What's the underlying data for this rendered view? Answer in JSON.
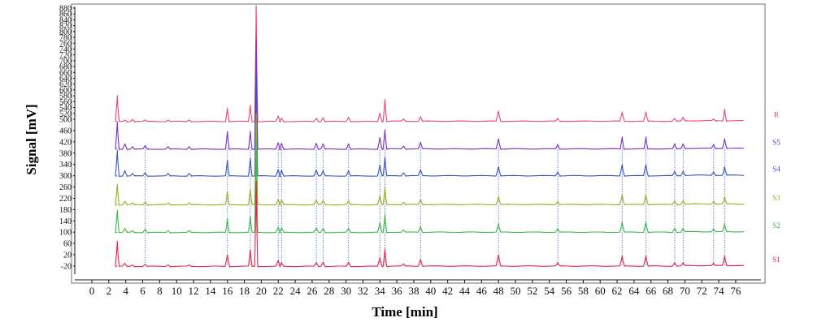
{
  "chart_data": {
    "type": "line",
    "title": "",
    "xlabel": "Time [min]",
    "ylabel": "Signal [mV]",
    "xlim": [
      -1,
      78
    ],
    "ylim": [
      -40,
      900
    ],
    "x_ticks": [
      "0",
      "2",
      "4",
      "6",
      "8",
      "10",
      "12",
      "14",
      "16",
      "18",
      "20",
      "22",
      "24",
      "26",
      "28",
      "30",
      "32",
      "34",
      "36",
      "38",
      "40",
      "42",
      "44",
      "46",
      "48",
      "50",
      "52",
      "54",
      "56",
      "58",
      "60",
      "62",
      "64",
      "66",
      "68",
      "70",
      "72",
      "74",
      "76"
    ],
    "y_ticks": [
      "-20",
      "20",
      "60",
      "100",
      "140",
      "180",
      "220",
      "260",
      "300",
      "340",
      "380",
      "420",
      "460",
      "500",
      "520",
      "540",
      "560",
      "580",
      "600",
      "620",
      "640",
      "660",
      "680",
      "700",
      "720",
      "740",
      "760",
      "780",
      "800",
      "820",
      "840",
      "860",
      "880"
    ],
    "grid": false,
    "legend": "right",
    "series": [
      {
        "name": "R",
        "color": "#e8457a",
        "baseline": 493,
        "peak_heights": [
          88,
          4,
          6,
          4,
          4,
          4,
          45,
          55,
          395,
          18,
          10,
          10,
          12,
          14,
          28,
          75,
          8,
          16,
          35,
          10,
          32,
          32,
          10,
          14,
          8,
          42
        ]
      },
      {
        "name": "S5",
        "color": "#7b2fbe",
        "baseline": 395,
        "peak_heights": [
          95,
          18,
          8,
          12,
          8,
          8,
          62,
          62,
          380,
          22,
          20,
          20,
          18,
          18,
          40,
          68,
          10,
          24,
          36,
          16,
          42,
          42,
          18,
          18,
          16,
          36
        ]
      },
      {
        "name": "S4",
        "color": "#3d55c0",
        "baseline": 300,
        "peak_heights": [
          90,
          18,
          8,
          10,
          8,
          8,
          55,
          62,
          360,
          22,
          20,
          20,
          18,
          18,
          38,
          66,
          10,
          22,
          32,
          14,
          40,
          40,
          16,
          16,
          14,
          32
        ]
      },
      {
        "name": "S3",
        "color": "#9ab020",
        "baseline": 198,
        "peak_heights": [
          72,
          12,
          6,
          8,
          6,
          6,
          45,
          55,
          320,
          18,
          16,
          16,
          14,
          14,
          32,
          60,
          8,
          18,
          28,
          12,
          34,
          34,
          14,
          14,
          12,
          28
        ]
      },
      {
        "name": "S2",
        "color": "#3fb84a",
        "baseline": 100,
        "peak_heights": [
          78,
          14,
          6,
          10,
          6,
          6,
          48,
          58,
          330,
          18,
          16,
          16,
          14,
          14,
          34,
          62,
          8,
          20,
          30,
          12,
          36,
          36,
          14,
          14,
          12,
          30
        ]
      },
      {
        "name": "S1",
        "color": "#e8234e",
        "baseline": -20,
        "peak_heights": [
          88,
          10,
          4,
          6,
          4,
          4,
          40,
          58,
          300,
          20,
          12,
          12,
          14,
          14,
          30,
          60,
          8,
          24,
          40,
          12,
          36,
          36,
          12,
          12,
          10,
          36
        ]
      }
    ],
    "peak_times": [
      3.0,
      3.9,
      4.8,
      6.3,
      9.0,
      11.5,
      16.0,
      18.7,
      19.4,
      22.0,
      22.4,
      26.5,
      27.3,
      30.3,
      34.0,
      34.6,
      36.8,
      38.8,
      48.0,
      55.0,
      62.6,
      65.4,
      68.8,
      69.8,
      73.4,
      74.7
    ],
    "aligned_peak_times": [
      6.3,
      16.0,
      18.7,
      22.0,
      22.4,
      26.5,
      27.3,
      30.3,
      34.0,
      34.6,
      38.8,
      48.0,
      55.0,
      62.6,
      65.4,
      68.8,
      69.8,
      73.4,
      74.7
    ]
  }
}
